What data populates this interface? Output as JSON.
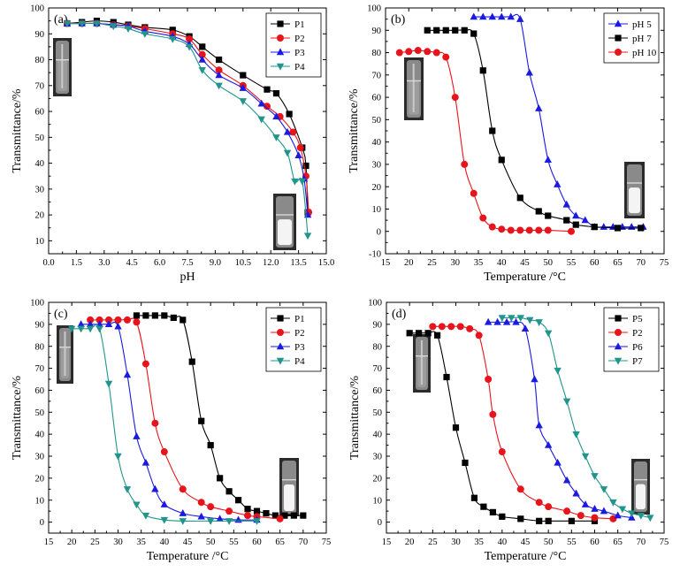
{
  "chart_data": [
    {
      "panel": "(a)",
      "type": "line",
      "xlabel": "pH",
      "ylabel": "Transmittance/%",
      "xlim": [
        0,
        15
      ],
      "ylim": [
        5,
        100
      ],
      "xticks": [
        "0.0",
        "1.5",
        "3.0",
        "4.5",
        "6.0",
        "7.5",
        "9.0",
        "10.5",
        "12.0",
        "13.5",
        "15.0"
      ],
      "yticks": [
        "10",
        "20",
        "30",
        "40",
        "50",
        "60",
        "70",
        "80",
        "90",
        "100"
      ],
      "legend_position": "top-right",
      "series": [
        {
          "name": "P1",
          "marker": "square",
          "color": "#000000",
          "x": [
            1.0,
            1.8,
            2.6,
            3.5,
            4.3,
            5.2,
            6.7,
            7.6,
            8.3,
            9.2,
            10.5,
            11.8,
            12.3,
            13.0,
            13.7,
            13.9,
            14.0
          ],
          "y": [
            94,
            94.5,
            95,
            94.5,
            93.5,
            92.5,
            91.5,
            89,
            85,
            80,
            74,
            68.5,
            67,
            59,
            46,
            39,
            21
          ]
        },
        {
          "name": "P2",
          "marker": "circle",
          "color": "#e8141b",
          "x": [
            1.0,
            1.8,
            2.6,
            3.5,
            4.3,
            5.2,
            6.7,
            7.6,
            8.3,
            9.2,
            10.5,
            11.8,
            12.5,
            13.2,
            13.6,
            13.9,
            14.05
          ],
          "y": [
            94,
            94,
            94,
            93.5,
            93,
            92,
            90,
            88,
            82,
            76,
            70,
            62,
            58,
            52,
            46,
            35,
            21
          ]
        },
        {
          "name": "P3",
          "marker": "triangle-up",
          "color": "#1a1ae0",
          "x": [
            1.0,
            1.8,
            2.6,
            3.5,
            4.3,
            5.2,
            6.7,
            7.6,
            8.3,
            9.2,
            10.5,
            11.5,
            12.3,
            12.9,
            13.5,
            13.8,
            14.0
          ],
          "y": [
            94,
            94,
            94,
            93.5,
            93,
            91,
            89,
            86,
            80,
            74,
            69,
            63,
            58,
            52,
            43,
            34,
            20
          ]
        },
        {
          "name": "P4",
          "marker": "triangle-down",
          "color": "#20958c",
          "x": [
            1.0,
            1.8,
            2.6,
            3.5,
            4.3,
            5.2,
            6.7,
            7.6,
            8.3,
            9.2,
            10.5,
            11.5,
            12.3,
            12.9,
            13.3,
            13.7,
            14.0
          ],
          "y": [
            94,
            94,
            94,
            93,
            92,
            90,
            88,
            85,
            76,
            70,
            64,
            57,
            50,
            44,
            33,
            33,
            12
          ]
        }
      ]
    },
    {
      "panel": "(b)",
      "type": "line",
      "xlabel": "Temperature /°C",
      "ylabel": "Transmittance/%",
      "xlim": [
        15,
        75
      ],
      "ylim": [
        -10,
        100
      ],
      "xticks": [
        "15",
        "20",
        "25",
        "30",
        "35",
        "40",
        "45",
        "50",
        "55",
        "60",
        "65",
        "70",
        "75"
      ],
      "yticks": [
        "-10",
        "0",
        "10",
        "20",
        "30",
        "40",
        "50",
        "60",
        "70",
        "80",
        "90",
        "100"
      ],
      "legend_position": "top-right",
      "series": [
        {
          "name": "pH 5",
          "marker": "triangle-up",
          "color": "#1a1ae0",
          "x": [
            34,
            36,
            38,
            40,
            42,
            44,
            46,
            48,
            50,
            52,
            54,
            56,
            58,
            60,
            62,
            64,
            66,
            68,
            70.5
          ],
          "y": [
            96,
            96,
            96,
            96,
            96,
            95,
            71,
            55,
            32,
            21,
            12,
            7,
            5,
            2,
            2,
            2,
            2,
            2,
            2
          ]
        },
        {
          "name": "pH 7",
          "marker": "square",
          "color": "#000000",
          "x": [
            24,
            26,
            28,
            30,
            32,
            34,
            36,
            38,
            40,
            44,
            48,
            50,
            54,
            56,
            60,
            65,
            70
          ],
          "y": [
            90,
            90,
            90,
            90,
            90,
            88.5,
            72,
            45,
            32,
            15,
            9,
            7,
            5,
            3,
            2,
            1.5,
            1.5
          ]
        },
        {
          "name": "pH 10",
          "marker": "circle",
          "color": "#e8141b",
          "x": [
            18,
            20,
            22,
            24,
            26,
            28,
            30,
            32,
            34,
            36,
            38,
            40,
            42,
            44,
            46,
            48,
            50,
            55
          ],
          "y": [
            80,
            80.5,
            81,
            80.5,
            80,
            78,
            60,
            30,
            17,
            6,
            2,
            1,
            0.5,
            0.5,
            0.5,
            0.5,
            0.5,
            0
          ]
        }
      ]
    },
    {
      "panel": "(c)",
      "type": "line",
      "xlabel": "Temperature /°C",
      "ylabel": "Transmittance/%",
      "xlim": [
        15,
        75
      ],
      "ylim": [
        -5,
        100
      ],
      "xticks": [
        "15",
        "20",
        "25",
        "30",
        "35",
        "40",
        "45",
        "50",
        "55",
        "60",
        "65",
        "70",
        "75"
      ],
      "yticks": [
        "0",
        "10",
        "20",
        "30",
        "40",
        "50",
        "60",
        "70",
        "80",
        "90",
        "100"
      ],
      "legend_position": "top-right",
      "series": [
        {
          "name": "P1",
          "marker": "square",
          "color": "#000000",
          "x": [
            34,
            36,
            38,
            40,
            42,
            44,
            46,
            48,
            50,
            52,
            54,
            56,
            58,
            60,
            62,
            64,
            66,
            68,
            70
          ],
          "y": [
            94,
            94,
            94,
            94,
            93,
            92,
            73,
            46,
            35,
            20,
            14,
            10,
            6,
            5,
            4,
            3,
            3,
            3,
            3
          ]
        },
        {
          "name": "P2",
          "marker": "circle",
          "color": "#e8141b",
          "x": [
            24,
            26,
            28,
            30,
            32,
            34,
            36,
            38,
            40,
            44,
            48,
            50,
            54,
            58,
            60,
            65
          ],
          "y": [
            92,
            92,
            92,
            92,
            92,
            91,
            72,
            45,
            32,
            15,
            9,
            7,
            5,
            3,
            2.5,
            1.5
          ]
        },
        {
          "name": "P3",
          "marker": "triangle-up",
          "color": "#1a1ae0",
          "x": [
            22,
            24,
            26,
            28,
            30,
            32,
            34,
            36,
            38,
            40,
            44,
            48,
            52,
            56,
            60
          ],
          "y": [
            90,
            90,
            90,
            90,
            89,
            67,
            39,
            27,
            15,
            8,
            4,
            2.5,
            1.5,
            1,
            1
          ]
        },
        {
          "name": "P4",
          "marker": "triangle-down",
          "color": "#20958c",
          "x": [
            20,
            22,
            24,
            26,
            28,
            30,
            32,
            34,
            36,
            40,
            44,
            50,
            54,
            60
          ],
          "y": [
            88,
            88,
            88,
            88,
            63,
            30,
            15,
            8,
            3,
            1,
            0.5,
            0.5,
            0.5,
            0.5
          ]
        }
      ]
    },
    {
      "panel": "(d)",
      "type": "line",
      "xlabel": "Temperature /°C",
      "ylabel": "Transmittance/%",
      "xlim": [
        15,
        75
      ],
      "ylim": [
        -5,
        100
      ],
      "xticks": [
        "15",
        "20",
        "25",
        "30",
        "35",
        "40",
        "45",
        "50",
        "55",
        "60",
        "65",
        "70",
        "75"
      ],
      "yticks": [
        "0",
        "10",
        "20",
        "30",
        "40",
        "50",
        "60",
        "70",
        "80",
        "90",
        "100"
      ],
      "legend_position": "top-right",
      "series": [
        {
          "name": "P5",
          "marker": "square",
          "color": "#000000",
          "x": [
            20,
            22,
            24,
            26,
            28,
            30,
            32,
            34,
            36,
            38,
            40,
            44,
            48,
            50,
            55,
            60
          ],
          "y": [
            86,
            86,
            86,
            85,
            66,
            43,
            27,
            11,
            7,
            4.5,
            2.5,
            1.5,
            0.5,
            0.5,
            0.5,
            0.5
          ]
        },
        {
          "name": "P2",
          "marker": "circle",
          "color": "#e8141b",
          "x": [
            25,
            27,
            29,
            31,
            33,
            35,
            37,
            38,
            40,
            44,
            48,
            50,
            54,
            57,
            60,
            64
          ],
          "y": [
            89,
            89,
            89,
            89,
            88,
            85,
            65,
            49,
            32,
            15,
            9,
            7,
            5,
            3,
            2,
            1.5
          ]
        },
        {
          "name": "P6",
          "marker": "triangle-up",
          "color": "#1a1ae0",
          "x": [
            37,
            39,
            41,
            43,
            45,
            47,
            48,
            50,
            52,
            54,
            56,
            58,
            60,
            62,
            65,
            68
          ],
          "y": [
            91,
            91,
            91,
            91,
            88,
            65,
            44,
            35,
            27,
            19,
            13,
            8,
            6,
            5,
            3,
            2
          ]
        },
        {
          "name": "P7",
          "marker": "triangle-down",
          "color": "#20958c",
          "x": [
            40,
            42,
            44,
            46,
            48,
            50,
            52,
            54,
            56,
            58,
            60,
            62,
            64,
            66,
            68,
            70,
            72
          ],
          "y": [
            93,
            93,
            93,
            92,
            91,
            86,
            69,
            55,
            40,
            30,
            21,
            15,
            9,
            6,
            4,
            3,
            2
          ]
        }
      ]
    }
  ]
}
